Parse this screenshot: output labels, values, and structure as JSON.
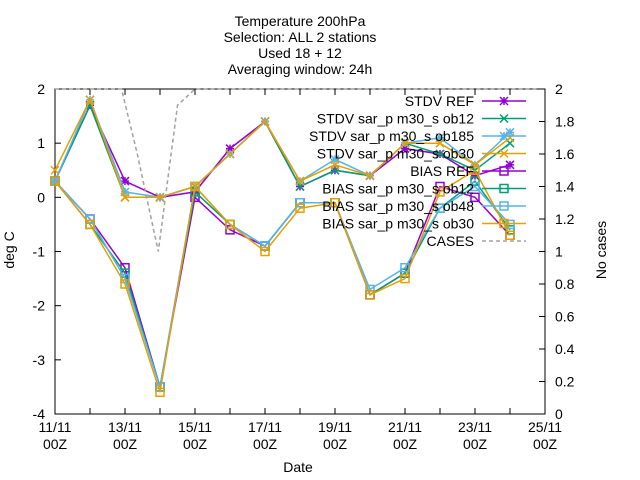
{
  "chart_data": {
    "type": "line",
    "title_lines": [
      "Temperature 200hPa",
      "Selection: ALL       2 stations",
      "Used 18 + 12",
      "Averaging window: 24h"
    ],
    "xlabel": "Date",
    "ylabel": "deg C",
    "y2label": "No cases",
    "x_tick_labels": [
      {
        "day": 0,
        "line1": "11/11",
        "line2": "00Z"
      },
      {
        "day": 2,
        "line1": "13/11",
        "line2": "00Z"
      },
      {
        "day": 4,
        "line1": "15/11",
        "line2": "00Z"
      },
      {
        "day": 6,
        "line1": "17/11",
        "line2": "00Z"
      },
      {
        "day": 8,
        "line1": "19/11",
        "line2": "00Z"
      },
      {
        "day": 10,
        "line1": "21/11",
        "line2": "00Z"
      },
      {
        "day": 12,
        "line1": "23/11",
        "line2": "00Z"
      },
      {
        "day": 14,
        "line1": "25/11",
        "line2": "00Z"
      }
    ],
    "xlim_days": [
      0,
      14
    ],
    "ylim": [
      -4,
      2
    ],
    "y_ticks": [
      -4,
      -3,
      -2,
      -1,
      0,
      1,
      2
    ],
    "y2lim": [
      0,
      2
    ],
    "y2_ticks": [
      0,
      0.2,
      0.4,
      0.6,
      0.8,
      1,
      1.2,
      1.4,
      1.6,
      1.8,
      2
    ],
    "x_days": [
      0,
      1,
      2,
      3,
      4,
      5,
      6,
      7,
      8,
      9,
      10,
      11,
      12,
      13
    ],
    "legend_position": "top-right",
    "series": [
      {
        "name": "STDV REF",
        "color": "#9400d3",
        "marker": "star",
        "dash": "",
        "axis": "y1",
        "values": [
          0.3,
          1.7,
          0.3,
          0.0,
          0.1,
          0.9,
          1.4,
          0.2,
          0.5,
          0.4,
          0.9,
          0.8,
          0.4,
          0.6
        ]
      },
      {
        "name": "STDV sar_p m30_s ob12",
        "color": "#009e73",
        "marker": "x",
        "dash": "",
        "axis": "y1",
        "values": [
          0.3,
          1.7,
          0.0,
          0.0,
          0.2,
          0.8,
          1.4,
          0.2,
          0.5,
          0.4,
          1.0,
          0.8,
          0.5,
          1.0
        ]
      },
      {
        "name": "STDV sar_p m30_s ob185",
        "color": "#56b4e9",
        "marker": "star",
        "dash": "",
        "axis": "y1",
        "values": [
          0.3,
          1.8,
          0.1,
          0.0,
          0.2,
          0.8,
          1.4,
          0.3,
          0.7,
          0.4,
          1.0,
          1.1,
          0.6,
          1.2
        ]
      },
      {
        "name": "STDV sar_p m30_s ob30",
        "color": "#e69f00",
        "marker": "x",
        "dash": "",
        "axis": "y1",
        "values": [
          0.5,
          1.8,
          0.0,
          0.0,
          0.2,
          0.8,
          1.4,
          0.3,
          0.6,
          0.4,
          1.0,
          1.0,
          0.6,
          1.1
        ]
      },
      {
        "name": "BIAS REF",
        "color": "#9400d3",
        "marker": "square",
        "dash": "",
        "axis": "y1",
        "values": [
          0.3,
          -0.4,
          -1.3,
          -3.5,
          0.0,
          -0.6,
          -0.9,
          -0.1,
          -0.1,
          -1.8,
          -1.4,
          0.2,
          0.0,
          -0.7
        ]
      },
      {
        "name": "BIAS sar_p m30_s ob12",
        "color": "#009e73",
        "marker": "square",
        "dash": "",
        "axis": "y1",
        "values": [
          0.3,
          -0.5,
          -1.4,
          -3.5,
          0.1,
          -0.5,
          -0.9,
          -0.1,
          -0.1,
          -1.8,
          -1.4,
          -0.2,
          0.3,
          -0.6
        ]
      },
      {
        "name": "BIAS sar_p m30_s ob48",
        "color": "#56b4e9",
        "marker": "square",
        "dash": "",
        "axis": "y1",
        "values": [
          0.3,
          -0.4,
          -1.5,
          -3.5,
          0.2,
          -0.5,
          -0.9,
          -0.1,
          -0.1,
          -1.7,
          -1.3,
          -0.2,
          0.2,
          -0.5
        ]
      },
      {
        "name": "BIAS sar_p m30_s ob30",
        "color": "#e69f00",
        "marker": "square",
        "dash": "",
        "axis": "y1",
        "values": [
          0.3,
          -0.5,
          -1.6,
          -3.6,
          0.2,
          -0.5,
          -1.0,
          -0.2,
          -0.1,
          -1.8,
          -1.5,
          0.1,
          0.5,
          -0.7
        ]
      },
      {
        "name": "CASES",
        "color": "#a0a0a0",
        "marker": "",
        "dash": "4,3",
        "axis": "y2",
        "x_custom": [
          0,
          1,
          1.9,
          2.35,
          2.95,
          3.5,
          4,
          4.6,
          13.8
        ],
        "values": [
          2,
          2,
          2,
          1.6,
          1.0,
          1.9,
          2,
          2,
          2
        ]
      }
    ]
  }
}
